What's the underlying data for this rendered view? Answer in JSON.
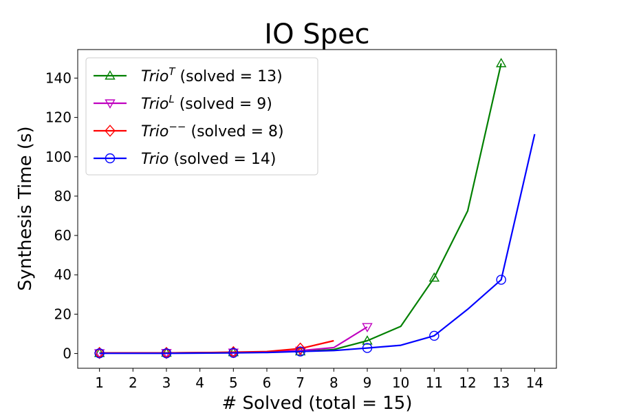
{
  "chart_data": {
    "type": "line",
    "title": "IO Spec",
    "xlabel": "# Solved (total = 15)",
    "ylabel": "Synthesis Time (s)",
    "xlim": [
      0.35,
      14.65
    ],
    "ylim": [
      -7.5,
      154.5
    ],
    "xticks": [
      1,
      2,
      3,
      4,
      5,
      6,
      7,
      8,
      9,
      10,
      11,
      12,
      13,
      14
    ],
    "yticks": [
      0,
      20,
      40,
      60,
      80,
      100,
      120,
      140
    ],
    "grid": false,
    "legend_position": "top-left",
    "series": [
      {
        "name": "TrioT",
        "legend": {
          "italic": "Trio",
          "sup": "T",
          "rest": " (solved = 13)"
        },
        "color": "#008000",
        "marker": "triangle-up",
        "marker_every": 2,
        "x": [
          1,
          2,
          3,
          4,
          5,
          6,
          7,
          8,
          9,
          10,
          11,
          12,
          13
        ],
        "y": [
          0.2,
          0.3,
          0.3,
          0.4,
          0.6,
          0.8,
          1.0,
          2.0,
          6.5,
          13.8,
          38.5,
          72.5,
          147.5
        ]
      },
      {
        "name": "TrioL",
        "legend": {
          "italic": "Trio",
          "sup": "L",
          "rest": " (solved = 9)"
        },
        "color": "#bf00bf",
        "marker": "triangle-down",
        "marker_every": 2,
        "x": [
          1,
          2,
          3,
          4,
          5,
          6,
          7,
          8,
          9
        ],
        "y": [
          0.2,
          0.3,
          0.3,
          0.4,
          0.5,
          0.8,
          1.5,
          3.0,
          13.5
        ]
      },
      {
        "name": "Trio--",
        "legend": {
          "italic": "Trio",
          "sup": "−−",
          "rest": " (solved = 8)"
        },
        "color": "#ff0000",
        "marker": "diamond",
        "marker_every": 2,
        "x": [
          1,
          2,
          3,
          4,
          5,
          6,
          7,
          8
        ],
        "y": [
          0.3,
          0.3,
          0.3,
          0.4,
          0.7,
          1.0,
          2.5,
          6.5
        ]
      },
      {
        "name": "Trio",
        "legend": {
          "italic": "Trio",
          "sup": "",
          "rest": " (solved = 14)"
        },
        "color": "#0000ff",
        "marker": "circle",
        "marker_every": 2,
        "x": [
          1,
          2,
          3,
          4,
          5,
          6,
          7,
          8,
          9,
          10,
          11,
          12,
          13,
          14
        ],
        "y": [
          0.1,
          0.1,
          0.1,
          0.2,
          0.3,
          0.5,
          1.0,
          1.5,
          2.8,
          4.2,
          9.0,
          22.5,
          37.5,
          111.5
        ]
      }
    ]
  }
}
